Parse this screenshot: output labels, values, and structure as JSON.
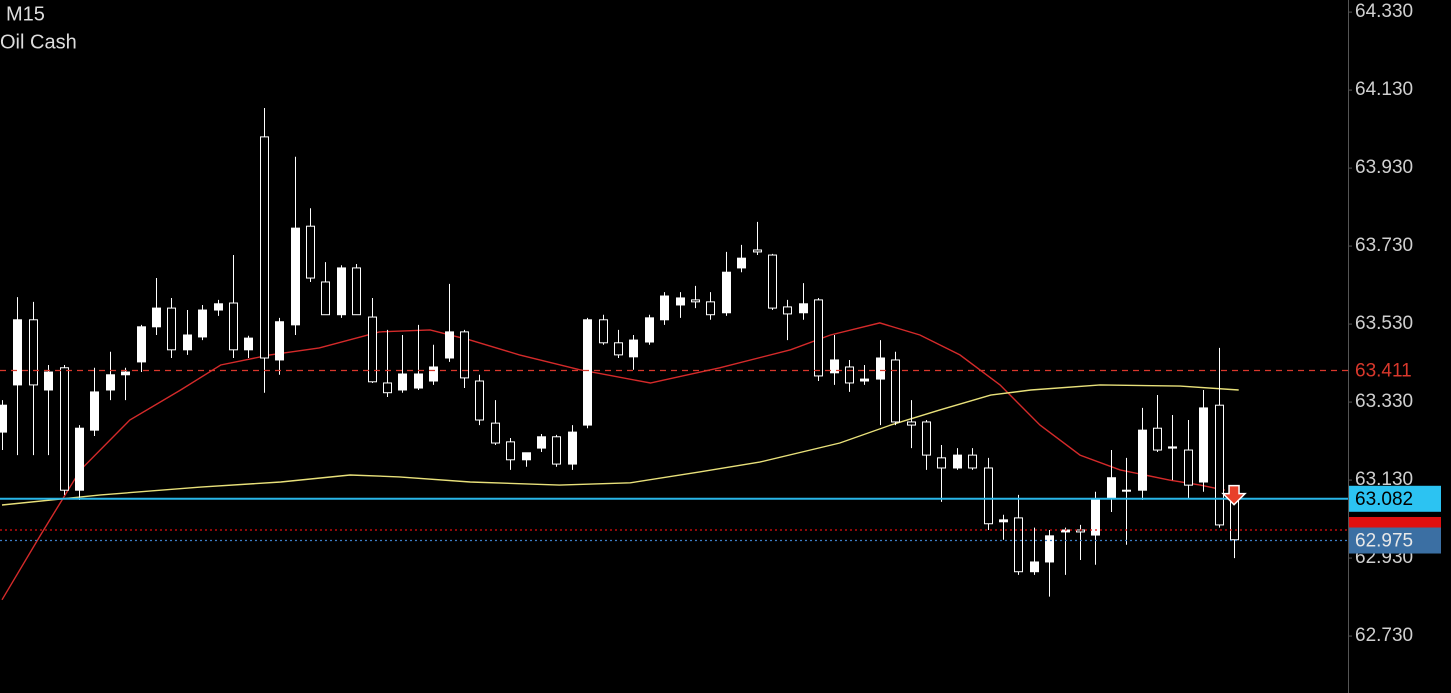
{
  "chart_data": {
    "type": "candlestick",
    "timeframe": "M15",
    "symbol": "Oil Cash",
    "ylim": [
      62.584,
      64.361
    ],
    "yticks": [
      {
        "value": 64.33,
        "label": "64.330"
      },
      {
        "value": 64.13,
        "label": "64.130"
      },
      {
        "value": 63.93,
        "label": "63.930"
      },
      {
        "value": 63.73,
        "label": "63.730"
      },
      {
        "value": 63.53,
        "label": "63.530"
      },
      {
        "value": 63.33,
        "label": "63.330"
      },
      {
        "value": 63.13,
        "label": "63.130"
      },
      {
        "value": 62.93,
        "label": "62.930"
      },
      {
        "value": 62.73,
        "label": "62.730"
      }
    ],
    "xlim": [
      -0.13,
      87.4
    ],
    "x": [
      0,
      1,
      2,
      3,
      4,
      5,
      6,
      7,
      8,
      9,
      10,
      11,
      12,
      13,
      14,
      15,
      16,
      17,
      18,
      19,
      20,
      21,
      22,
      23,
      24,
      25,
      26,
      27,
      28,
      29,
      30,
      31,
      32,
      33,
      34,
      35,
      36,
      37,
      38,
      39,
      40,
      41,
      42,
      43,
      44,
      45,
      46,
      47,
      48,
      49,
      50,
      51,
      52,
      53,
      54,
      55,
      56,
      57,
      58,
      59,
      60,
      61,
      62,
      63,
      64,
      65,
      66,
      67,
      68,
      69,
      70,
      71,
      72,
      73,
      74,
      75,
      76,
      77,
      78,
      79,
      80
    ],
    "open": [
      63.253,
      63.374,
      63.541,
      63.361,
      63.418,
      63.104,
      63.258,
      63.361,
      63.4,
      63.433,
      63.523,
      63.571,
      63.464,
      63.497,
      63.566,
      63.584,
      63.464,
      64.01,
      63.438,
      63.528,
      63.781,
      63.638,
      63.554,
      63.674,
      63.548,
      63.379,
      63.361,
      63.366,
      63.384,
      63.443,
      63.51,
      63.384,
      63.276,
      63.228,
      63.182,
      63.212,
      63.241,
      63.171,
      63.271,
      63.541,
      63.482,
      63.446,
      63.484,
      63.541,
      63.579,
      63.592,
      63.587,
      63.559,
      63.674,
      63.72,
      63.707,
      63.574,
      63.559,
      63.592,
      63.405,
      63.42,
      63.384,
      63.389,
      63.438,
      63.279,
      63.279,
      63.187,
      63.161,
      63.194,
      63.161,
      63.023,
      63.033,
      62.895,
      62.92,
      62.997,
      63.002,
      62.989,
      63.084,
      63.104,
      63.104,
      63.263,
      63.212,
      63.207,
      63.125,
      63.322,
      63.087
    ],
    "high": [
      63.335,
      63.599,
      63.587,
      63.425,
      63.425,
      63.271,
      63.418,
      63.459,
      63.418,
      63.528,
      63.648,
      63.597,
      63.566,
      63.579,
      63.592,
      63.707,
      63.5,
      64.084,
      63.546,
      63.959,
      63.827,
      63.689,
      63.681,
      63.684,
      63.597,
      63.515,
      63.502,
      63.528,
      63.477,
      63.633,
      63.515,
      63.4,
      63.335,
      63.238,
      63.194,
      63.248,
      63.246,
      63.271,
      63.546,
      63.554,
      63.515,
      63.502,
      63.554,
      63.612,
      63.612,
      63.628,
      63.612,
      63.715,
      63.733,
      63.792,
      63.71,
      63.592,
      63.635,
      63.597,
      63.502,
      63.438,
      63.425,
      63.489,
      63.459,
      63.335,
      63.284,
      63.22,
      63.212,
      63.212,
      63.187,
      63.041,
      63.092,
      63.008,
      63.002,
      63.008,
      63.015,
      63.1,
      63.207,
      63.187,
      63.315,
      63.348,
      63.297,
      63.284,
      63.361,
      63.469,
      63.104
    ],
    "low": [
      63.207,
      63.194,
      63.194,
      63.194,
      63.092,
      63.079,
      63.243,
      63.335,
      63.335,
      63.407,
      63.502,
      63.443,
      63.451,
      63.489,
      63.551,
      63.443,
      63.443,
      63.354,
      63.4,
      63.502,
      63.638,
      63.554,
      63.546,
      63.554,
      63.379,
      63.343,
      63.354,
      63.361,
      63.374,
      63.433,
      63.366,
      63.271,
      63.22,
      63.156,
      63.164,
      63.202,
      63.164,
      63.156,
      63.263,
      63.477,
      63.443,
      63.413,
      63.477,
      63.528,
      63.546,
      63.571,
      63.541,
      63.551,
      63.663,
      63.707,
      63.566,
      63.489,
      63.541,
      63.384,
      63.374,
      63.356,
      63.374,
      63.271,
      63.271,
      63.212,
      63.156,
      63.074,
      63.156,
      63.156,
      63.002,
      62.977,
      62.887,
      62.887,
      62.831,
      62.887,
      62.925,
      62.913,
      63.048,
      62.964,
      63.079,
      63.202,
      63.13,
      63.084,
      63.1,
      63.008,
      62.93
    ],
    "close": [
      63.322,
      63.541,
      63.374,
      63.407,
      63.104,
      63.263,
      63.356,
      63.4,
      63.407,
      63.523,
      63.571,
      63.464,
      63.502,
      63.566,
      63.582,
      63.464,
      63.494,
      63.443,
      63.536,
      63.776,
      63.648,
      63.554,
      63.674,
      63.554,
      63.382,
      63.354,
      63.402,
      63.402,
      63.42,
      63.51,
      63.392,
      63.284,
      63.225,
      63.182,
      63.2,
      63.241,
      63.171,
      63.253,
      63.541,
      63.482,
      63.451,
      63.489,
      63.546,
      63.602,
      63.597,
      63.587,
      63.554,
      63.663,
      63.699,
      63.715,
      63.571,
      63.556,
      63.582,
      63.397,
      63.438,
      63.379,
      63.389,
      63.443,
      63.279,
      63.271,
      63.194,
      63.161,
      63.194,
      63.161,
      63.018,
      63.028,
      62.895,
      62.92,
      62.987,
      63.002,
      62.997,
      63.079,
      63.136,
      63.102,
      63.258,
      63.207,
      63.215,
      63.117,
      63.315,
      63.015,
      62.977
    ],
    "up_color": "#ffffff",
    "down_color": "#000000",
    "indicators": [
      {
        "color": "#d42a2a",
        "x": [
          0,
          2.5,
          5.1,
          8.3,
          11.6,
          14.2,
          17.4,
          20.6,
          24.5,
          27.8,
          30.4,
          33.6,
          37.5,
          42.1,
          46.6,
          51.2,
          53.8,
          57.0,
          59.6,
          62.2,
          64.8,
          67.4,
          70.0,
          72.6,
          75.8,
          77.8,
          79.4
        ],
        "values": [
          62.823,
          62.989,
          63.156,
          63.284,
          63.361,
          63.425,
          63.451,
          63.469,
          63.51,
          63.515,
          63.489,
          63.451,
          63.413,
          63.379,
          63.418,
          63.464,
          63.502,
          63.533,
          63.502,
          63.451,
          63.374,
          63.271,
          63.194,
          63.156,
          63.13,
          63.117,
          63.104
        ]
      },
      {
        "color": "#e8e07a",
        "x": [
          0,
          6.4,
          12.9,
          18.1,
          22.6,
          25.8,
          30.4,
          36.2,
          40.8,
          45.3,
          49.2,
          54.4,
          57.7,
          60.9,
          64.2,
          66.8,
          71.3,
          76.5,
          80.3
        ],
        "values": [
          63.066,
          63.092,
          63.112,
          63.125,
          63.143,
          63.138,
          63.125,
          63.117,
          63.123,
          63.151,
          63.176,
          63.225,
          63.271,
          63.31,
          63.348,
          63.361,
          63.374,
          63.371,
          63.361
        ]
      }
    ],
    "price_lines": [
      {
        "value": 63.411,
        "label": "63.411",
        "color": "#d9382c",
        "style": "dashed"
      },
      {
        "value": 63.002,
        "color": "#e01010",
        "style": "dotted",
        "label_background": "#e01010"
      },
      {
        "value": 62.975,
        "label": "62.975",
        "color": "#3d7ec8",
        "style": "dotted",
        "label_background": "#3b6fa3"
      },
      {
        "value": 63.082,
        "label": "63.082",
        "color": "#29b6e8",
        "style": "solid",
        "label_background": "#2cc3f2"
      }
    ],
    "signal": {
      "x": 80,
      "value": 63.09,
      "color": "#e8402a"
    }
  }
}
